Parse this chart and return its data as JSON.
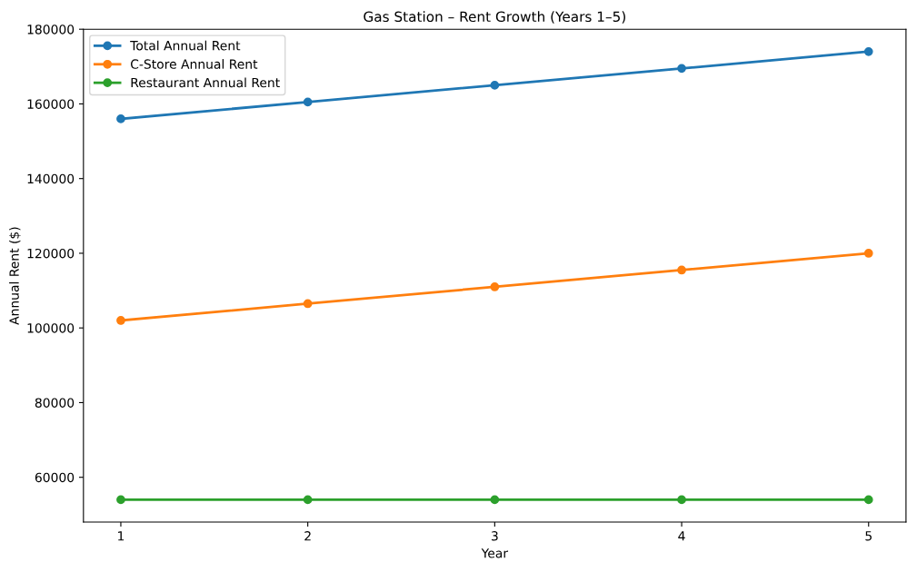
{
  "chart_data": {
    "type": "line",
    "title": "Gas Station – Rent Growth (Years 1–5)",
    "xlabel": "Year",
    "ylabel": "Annual Rent ($)",
    "x": [
      1,
      2,
      3,
      4,
      5
    ],
    "series": [
      {
        "name": "Total Annual Rent",
        "color": "#1f77b4",
        "values": [
          156000,
          160500,
          165000,
          169500,
          174000
        ]
      },
      {
        "name": "C-Store Annual Rent",
        "color": "#ff7f0e",
        "values": [
          102000,
          106500,
          111000,
          115500,
          120000
        ]
      },
      {
        "name": "Restaurant Annual Rent",
        "color": "#2ca02c",
        "values": [
          54000,
          54000,
          54000,
          54000,
          54000
        ]
      }
    ],
    "xlim": [
      0.8,
      5.2
    ],
    "xticks": [
      1,
      2,
      3,
      4,
      5
    ],
    "ylim": [
      48000,
      180000
    ],
    "yticks": [
      60000,
      80000,
      100000,
      120000,
      140000,
      160000,
      180000
    ],
    "legend": "top left",
    "grid": false,
    "marker": "circle",
    "line_style": "solid"
  }
}
